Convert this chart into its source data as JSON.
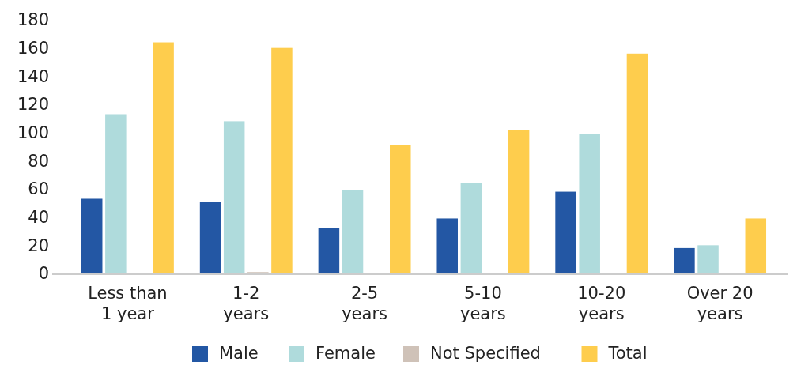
{
  "chart_data": {
    "type": "bar",
    "categories": [
      "Less than\n1 year",
      "1-2\nyears",
      "2-5\nyears",
      "5-10\nyears",
      "10-20\nyears",
      "Over 20\nyears"
    ],
    "series": [
      {
        "name": "Male",
        "color": "#2357a4",
        "values": [
          53,
          51,
          32,
          39,
          58,
          18
        ]
      },
      {
        "name": "Female",
        "color": "#afdbdc",
        "values": [
          113,
          108,
          59,
          64,
          99,
          20
        ]
      },
      {
        "name": "Not Specified",
        "color": "#cfc2b8",
        "values": [
          0,
          1,
          0,
          0,
          0,
          0
        ]
      },
      {
        "name": "Total",
        "color": "#fecd4d",
        "values": [
          164,
          160,
          91,
          102,
          156,
          39
        ]
      }
    ],
    "ylim": [
      0,
      180
    ],
    "yticks": [
      0,
      20,
      40,
      60,
      80,
      100,
      120,
      140,
      160,
      180
    ],
    "grid": false,
    "legend": "bottom"
  }
}
